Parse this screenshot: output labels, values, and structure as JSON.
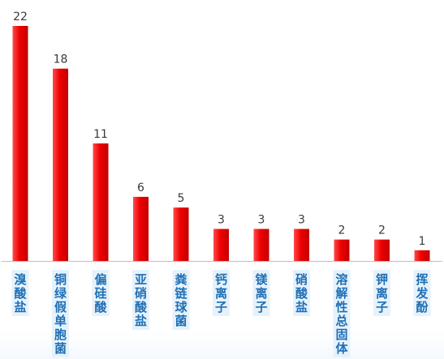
{
  "chart_data": {
    "type": "bar",
    "categories": [
      "溴酸盐",
      "铜绿假单胞菌",
      "偏硅酸",
      "亚硝酸盐",
      "粪链球菌",
      "钙离子",
      "镁离子",
      "硝酸盐",
      "溶解性总固体",
      "钾离子",
      "挥发酚"
    ],
    "values": [
      22,
      18,
      11,
      6,
      5,
      3,
      3,
      3,
      2,
      2,
      1
    ],
    "title": "",
    "xlabel": "",
    "ylabel": "",
    "ylim": [
      0,
      22
    ],
    "grid": false,
    "legend": "none",
    "colors": {
      "bar_light": "#ff4a4a",
      "bar_mid": "#ee0000",
      "bar_dark": "#c40000",
      "label_text": "#1f6fb5",
      "label_bg": "#e6f2fb",
      "value_text": "#3a3a3a",
      "axis": "#bfbfbf"
    }
  }
}
